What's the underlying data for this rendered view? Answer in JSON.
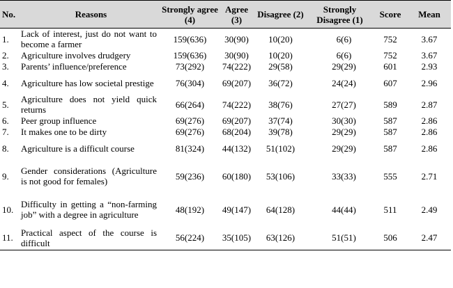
{
  "table": {
    "headers": {
      "no": "No.",
      "reasons": "Reasons",
      "strongly_agree": "Strongly agree (4)",
      "agree": "Agree (3)",
      "disagree": "Disagree (2)",
      "strongly_disagree": "Strongly Disagree (1)",
      "score": "Score",
      "mean": "Mean"
    },
    "rows": [
      {
        "no": "1.",
        "reason": "Lack of interest, just do not want to become a farmer",
        "sa": "159(636)",
        "ag": "30(90)",
        "di": "10(20)",
        "sd": "6(6)",
        "score": "752",
        "mean": "3.67"
      },
      {
        "no": "2.",
        "reason": "Agriculture involves drudgery",
        "sa": "159(636)",
        "ag": "30(90)",
        "di": "10(20)",
        "sd": "6(6)",
        "score": "752",
        "mean": "3.67"
      },
      {
        "no": "3.",
        "reason": "Parents’ influence/preference",
        "sa": "73(292)",
        "ag": "74(222)",
        "di": "29(58)",
        "sd": "29(29)",
        "score": "601",
        "mean": "2.93"
      },
      {
        "no": "4.",
        "reason": "Agriculture has low societal prestige",
        "sa": "76(304)",
        "ag": "69(207)",
        "di": "36(72)",
        "sd": "24(24)",
        "score": "607",
        "mean": "2.96"
      },
      {
        "no": "5.",
        "reason": "Agriculture does not yield quick returns",
        "sa": "66(264)",
        "ag": "74(222)",
        "di": "38(76)",
        "sd": "27(27)",
        "score": "589",
        "mean": "2.87"
      },
      {
        "no": "6.",
        "reason": "Peer group influence",
        "sa": "69(276)",
        "ag": "69(207)",
        "di": "37(74)",
        "sd": "30(30)",
        "score": "587",
        "mean": "2.86"
      },
      {
        "no": "7.",
        "reason": "It makes one to be dirty",
        "sa": "69(276)",
        "ag": "68(204)",
        "di": "39(78)",
        "sd": "29(29)",
        "score": "587",
        "mean": "2.86"
      },
      {
        "no": "8.",
        "reason": "Agriculture is a difficult course",
        "sa": "81(324)",
        "ag": "44(132)",
        "di": "51(102)",
        "sd": "29(29)",
        "score": "587",
        "mean": "2.86"
      },
      {
        "no": "9.",
        "reason": "Gender considerations (Agriculture is not good for females)",
        "sa": "59(236)",
        "ag": "60(180)",
        "di": "53(106)",
        "sd": "33(33)",
        "score": "555",
        "mean": "2.71"
      },
      {
        "no": "10.",
        "reason": "Difficulty in getting a “non-farming job” with a degree in agriculture",
        "sa": "48(192)",
        "ag": "49(147)",
        "di": "64(128)",
        "sd": "44(44)",
        "score": "511",
        "mean": "2.49"
      },
      {
        "no": "11.",
        "reason": "Practical aspect of the course is difficult",
        "sa": "56(224)",
        "ag": "35(105)",
        "di": "63(126)",
        "sd": "51(51)",
        "score": "506",
        "mean": "2.47"
      }
    ]
  }
}
